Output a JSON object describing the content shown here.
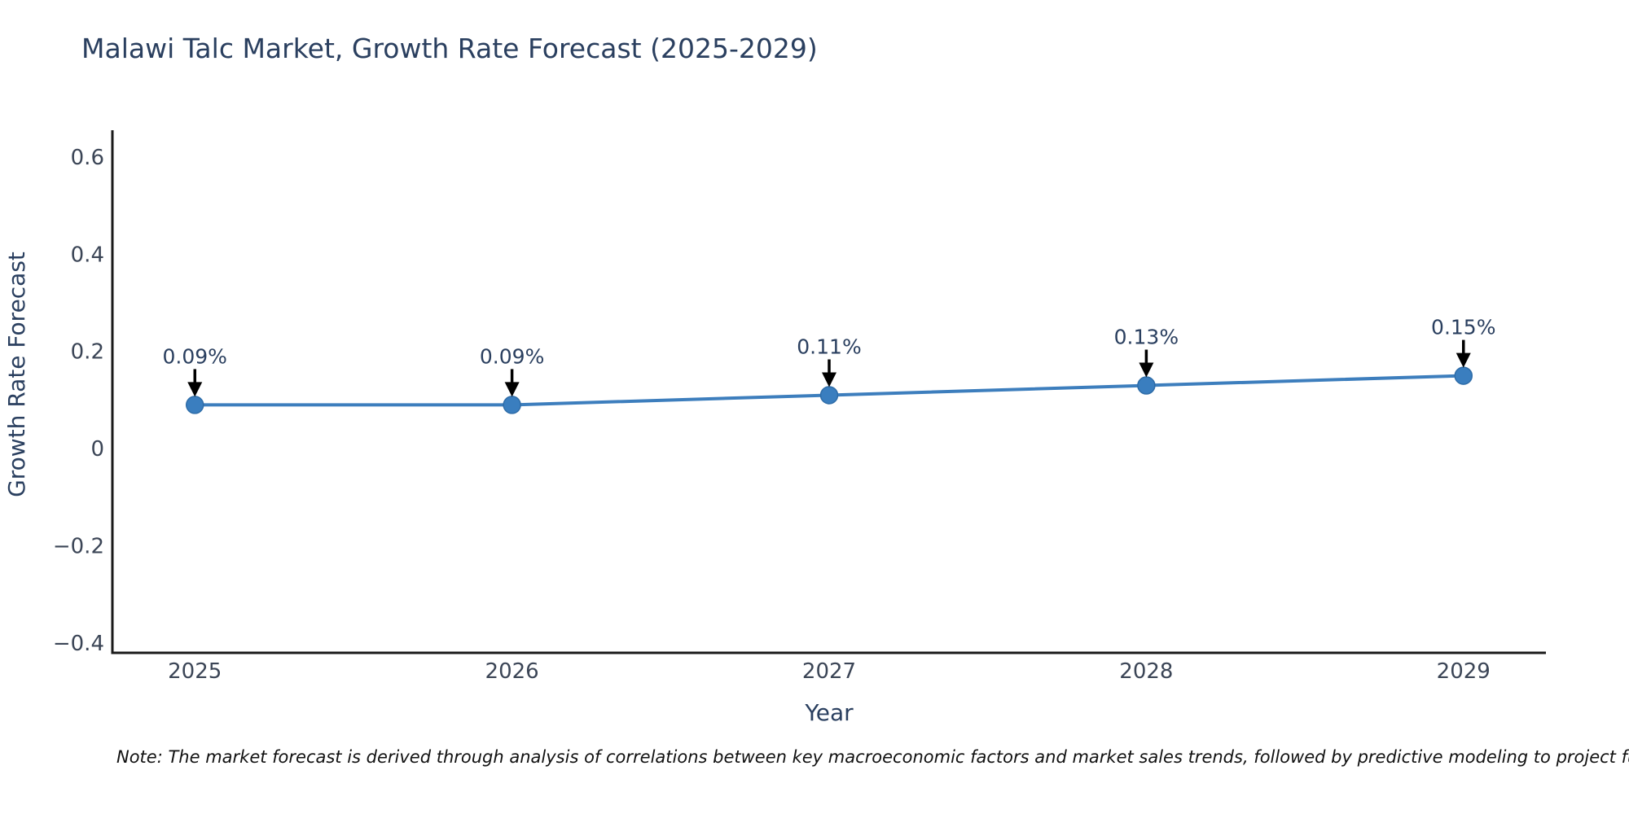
{
  "page": {
    "title": "Malawi Talc Market, Growth Rate Forecast (2025-2029)",
    "note": "Note: The market forecast is derived through analysis of correlations between key macroeconomic factors and market sales trends, followed by predictive modeling to project future sal"
  },
  "chart_data": {
    "type": "line",
    "title": "Malawi Talc Market, Growth Rate Forecast (2025-2029)",
    "xlabel": "Year",
    "ylabel": "Growth Rate Forecast",
    "x": [
      2025,
      2026,
      2027,
      2028,
      2029
    ],
    "x_tick_labels": [
      "2025",
      "2026",
      "2027",
      "2028",
      "2029"
    ],
    "series": [
      {
        "name": "Growth Rate Forecast",
        "values": [
          0.09,
          0.09,
          0.11,
          0.13,
          0.15
        ],
        "point_labels": [
          "0.09%",
          "0.09%",
          "0.11%",
          "0.13%",
          "0.15%"
        ]
      }
    ],
    "y_tick_values": [
      0.6,
      0.4,
      0.2,
      0,
      -0.2,
      -0.4
    ],
    "y_tick_labels": [
      "0.6",
      "0.4",
      "0.2",
      "0",
      "−0.2",
      "−0.4"
    ],
    "xlim": [
      2024.74,
      2029.26
    ],
    "ylim": [
      -0.42,
      0.655
    ],
    "grid": false,
    "legend_position": "none",
    "line_color": "#3d7ebd",
    "marker_color": "#3a7ebf",
    "marker_edge_color": "#2e6ca8",
    "arrow_color": "#000000",
    "axis_color": "#1a1a1a"
  }
}
